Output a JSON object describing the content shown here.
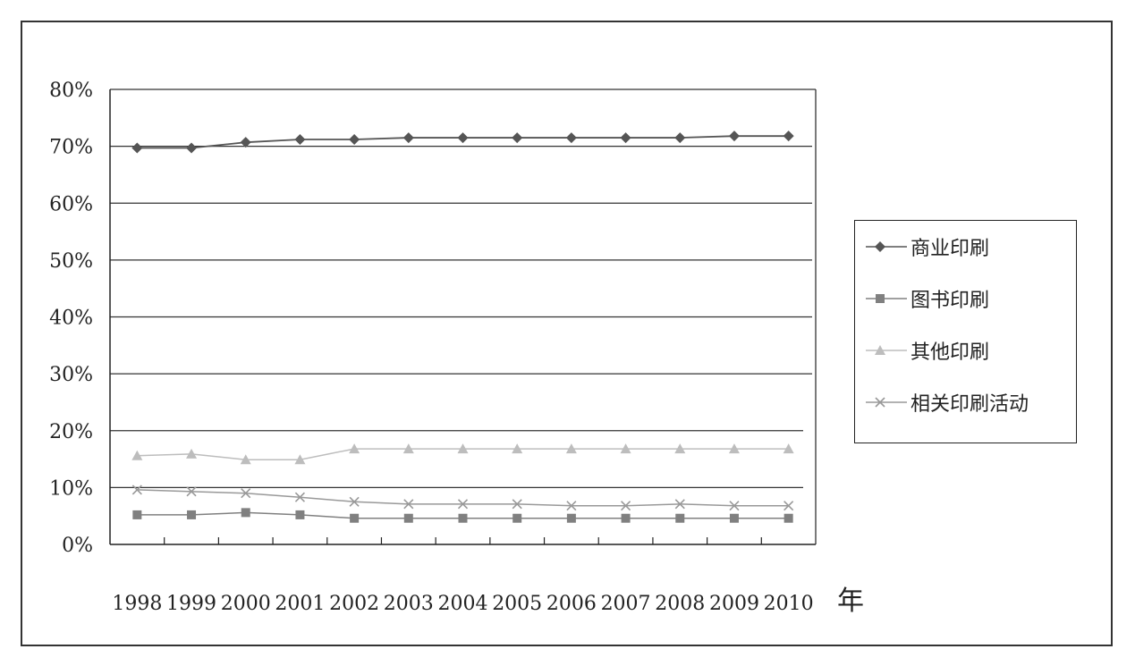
{
  "chart_data": {
    "type": "line",
    "x": [
      "1998",
      "1999",
      "2000",
      "2001",
      "2002",
      "2003",
      "2004",
      "2005",
      "2006",
      "2007",
      "2008",
      "2009",
      "2010"
    ],
    "xlabel": "年",
    "ylabel": "",
    "ylim": [
      0,
      80
    ],
    "y_ticks": [
      "0%",
      "10%",
      "20%",
      "30%",
      "40%",
      "50%",
      "60%",
      "70%",
      "80%"
    ],
    "grid": "horizontal",
    "legend": "right",
    "series": [
      {
        "name": "商业印刷",
        "marker": "diamond",
        "color": "#555555",
        "values": [
          69.7,
          69.7,
          70.7,
          71.2,
          71.2,
          71.5,
          71.5,
          71.5,
          71.5,
          71.5,
          71.5,
          71.8,
          71.8
        ]
      },
      {
        "name": "图书印刷",
        "marker": "square",
        "color": "#808080",
        "values": [
          5.2,
          5.2,
          5.6,
          5.2,
          4.6,
          4.6,
          4.6,
          4.6,
          4.6,
          4.6,
          4.6,
          4.6,
          4.6
        ]
      },
      {
        "name": "其他印刷",
        "marker": "triangle",
        "color": "#bdbdbd",
        "values": [
          15.6,
          15.9,
          14.9,
          14.9,
          16.8,
          16.8,
          16.8,
          16.8,
          16.8,
          16.8,
          16.8,
          16.8,
          16.8
        ]
      },
      {
        "name": "相关印刷活动",
        "marker": "x",
        "color": "#999999",
        "values": [
          9.6,
          9.3,
          9.0,
          8.3,
          7.5,
          7.1,
          7.1,
          7.1,
          6.8,
          6.8,
          7.1,
          6.8,
          6.8
        ]
      }
    ]
  }
}
